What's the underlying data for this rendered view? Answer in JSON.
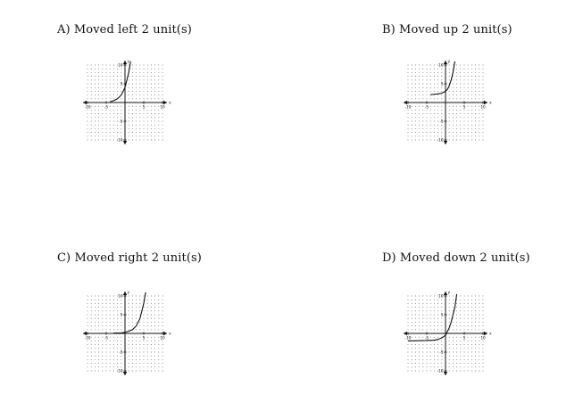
{
  "choices": [
    {
      "id": "A",
      "label": "A) Moved left 2 unit(s)",
      "curve_points": [
        [
          -4,
          0.2
        ],
        [
          -3,
          0.5
        ],
        [
          -2,
          1
        ],
        [
          -1,
          2
        ],
        [
          -0.5,
          3
        ],
        [
          0,
          4
        ],
        [
          0.5,
          6
        ],
        [
          1,
          8
        ],
        [
          1.5,
          11
        ]
      ]
    },
    {
      "id": "B",
      "label": "B) Moved up 2 unit(s)",
      "curve_points": [
        [
          -4,
          2.1
        ],
        [
          -3,
          2.2
        ],
        [
          -2,
          2.3
        ],
        [
          -1,
          2.5
        ],
        [
          0,
          3
        ],
        [
          0.5,
          3.5
        ],
        [
          1,
          4.5
        ],
        [
          1.5,
          6
        ],
        [
          2,
          8
        ],
        [
          2.5,
          11
        ]
      ]
    },
    {
      "id": "C",
      "label": "C) Moved right 2 unit(s)",
      "curve_points": [
        [
          -3,
          0.1
        ],
        [
          -1,
          0.15
        ],
        [
          0,
          0.3
        ],
        [
          1,
          0.6
        ],
        [
          2,
          1
        ],
        [
          3,
          2
        ],
        [
          3.5,
          3
        ],
        [
          4,
          4
        ],
        [
          4.5,
          6
        ],
        [
          5,
          8
        ],
        [
          5.5,
          11
        ]
      ]
    },
    {
      "id": "D",
      "label": "D) Moved down 2 unit(s)",
      "curve_points": [
        [
          -10,
          -2
        ],
        [
          -5,
          -1.9
        ],
        [
          -3,
          -1.8
        ],
        [
          -2,
          -1.6
        ],
        [
          -1,
          -1.2
        ],
        [
          0,
          -0.5
        ],
        [
          0.5,
          0.5
        ],
        [
          1,
          1.5
        ],
        [
          1.5,
          3
        ],
        [
          2,
          5
        ],
        [
          2.5,
          7
        ],
        [
          3,
          10.5
        ]
      ]
    }
  ],
  "axes": {
    "x_label": "x",
    "y_label": "y",
    "x_ticks": [
      "-10",
      "-5",
      "5",
      "10"
    ],
    "y_ticks": [
      "10",
      "5",
      "-5",
      "-10"
    ],
    "range": [
      -10,
      10
    ]
  }
}
